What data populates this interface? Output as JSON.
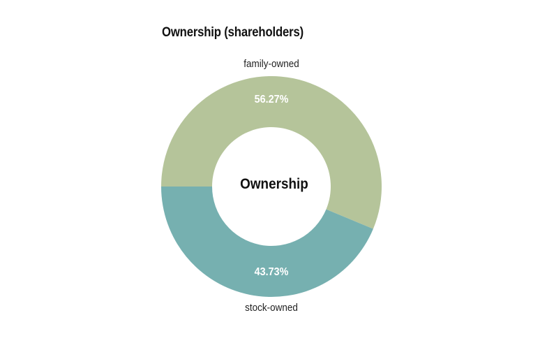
{
  "chart_data": {
    "type": "pie",
    "variant": "donut",
    "title": "Ownership (shareholders)",
    "center_label": "Ownership",
    "slices": [
      {
        "name": "family-owned",
        "value": 56.27,
        "label": "56.27%",
        "color": "#b5c49a"
      },
      {
        "name": "stock-owned",
        "value": 43.73,
        "label": "43.73%",
        "color": "#76b0b0"
      }
    ],
    "legend": "none"
  }
}
